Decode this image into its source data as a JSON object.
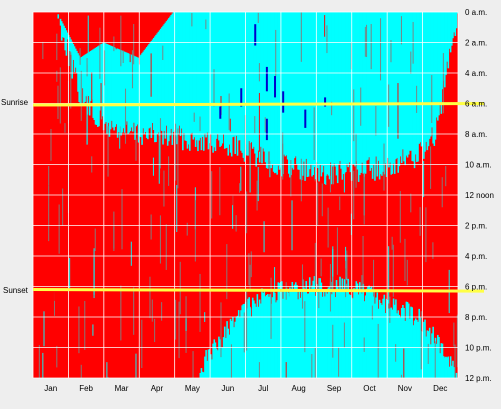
{
  "chart_data": {
    "type": "heatmap",
    "title": "",
    "xlabel": "",
    "ylabel": "",
    "months": [
      "Jan",
      "Feb",
      "Mar",
      "Apr",
      "May",
      "Jun",
      "Jul",
      "Aug",
      "Sep",
      "Oct",
      "Nov",
      "Dec"
    ],
    "hour_labels": [
      "0 a.m.",
      "2 a.m.",
      "4 a.m.",
      "6 a.m.",
      "8 a.m.",
      "10 a.m.",
      "12 noon",
      "2 p.m.",
      "4 p.m.",
      "6 p.m.",
      "8 p.m.",
      "10 p.m.",
      "12 p.m."
    ],
    "hour_values": [
      0,
      2,
      4,
      6,
      8,
      10,
      12,
      14,
      16,
      18,
      20,
      22,
      24
    ],
    "ylim": [
      0,
      24
    ],
    "grid": true,
    "colors": {
      "background": "#eeeeee",
      "red_state": "#ff0000",
      "cyan_state": "#00ffff",
      "blue_state": "#0000cc",
      "grey_state": "#808080",
      "grid": "#ffffff",
      "sun_line": "#ffff44"
    },
    "sunrise": {
      "label": "Sunrise",
      "start_hour": 6.1,
      "end_hour": 6.0
    },
    "sunset": {
      "label": "Sunset",
      "start_hour": 18.2,
      "end_hour": 18.3
    },
    "cyan_regions": {
      "morning": [
        {
          "day": 0,
          "start": 0,
          "end": 0
        },
        {
          "day": 20,
          "start": 0,
          "end": 0
        },
        {
          "day": 40,
          "start": 3,
          "end": 5.5
        },
        {
          "day": 60,
          "start": 2,
          "end": 7.5
        },
        {
          "day": 90,
          "start": 3,
          "end": 8
        },
        {
          "day": 120,
          "start": 0,
          "end": 8.2
        },
        {
          "day": 150,
          "start": 0,
          "end": 8.5
        },
        {
          "day": 180,
          "start": 0,
          "end": 9
        },
        {
          "day": 210,
          "start": 0,
          "end": 10
        },
        {
          "day": 240,
          "start": 0,
          "end": 10.5
        },
        {
          "day": 270,
          "start": 0,
          "end": 10.5
        },
        {
          "day": 300,
          "start": 0,
          "end": 10.2
        },
        {
          "day": 330,
          "start": 0,
          "end": 9.5
        },
        {
          "day": 345,
          "start": 0,
          "end": 8
        },
        {
          "day": 365,
          "start": 0,
          "end": 0
        }
      ],
      "evening": [
        {
          "day": 0,
          "start": 24,
          "end": 24
        },
        {
          "day": 140,
          "start": 24,
          "end": 24
        },
        {
          "day": 150,
          "start": 22.5,
          "end": 24
        },
        {
          "day": 175,
          "start": 20,
          "end": 24
        },
        {
          "day": 200,
          "start": 18.5,
          "end": 24
        },
        {
          "day": 240,
          "start": 18,
          "end": 24
        },
        {
          "day": 270,
          "start": 18,
          "end": 24
        },
        {
          "day": 300,
          "start": 19,
          "end": 24
        },
        {
          "day": 330,
          "start": 20,
          "end": 24
        },
        {
          "day": 350,
          "start": 22,
          "end": 24
        },
        {
          "day": 365,
          "start": 24,
          "end": 24
        }
      ]
    },
    "blue_marks": [
      {
        "day": 190,
        "start": 0.8,
        "end": 2.2
      },
      {
        "day": 178,
        "start": 5.0,
        "end": 6.2
      },
      {
        "day": 200,
        "start": 3.6,
        "end": 5.2
      },
      {
        "day": 207,
        "start": 4.2,
        "end": 5.6
      },
      {
        "day": 214,
        "start": 5.2,
        "end": 6.6
      },
      {
        "day": 233,
        "start": 6.4,
        "end": 7.6
      },
      {
        "day": 200,
        "start": 7.0,
        "end": 8.4
      },
      {
        "day": 160,
        "start": 6.2,
        "end": 7.0
      },
      {
        "day": 250,
        "start": 5.6,
        "end": 6.2
      }
    ]
  }
}
